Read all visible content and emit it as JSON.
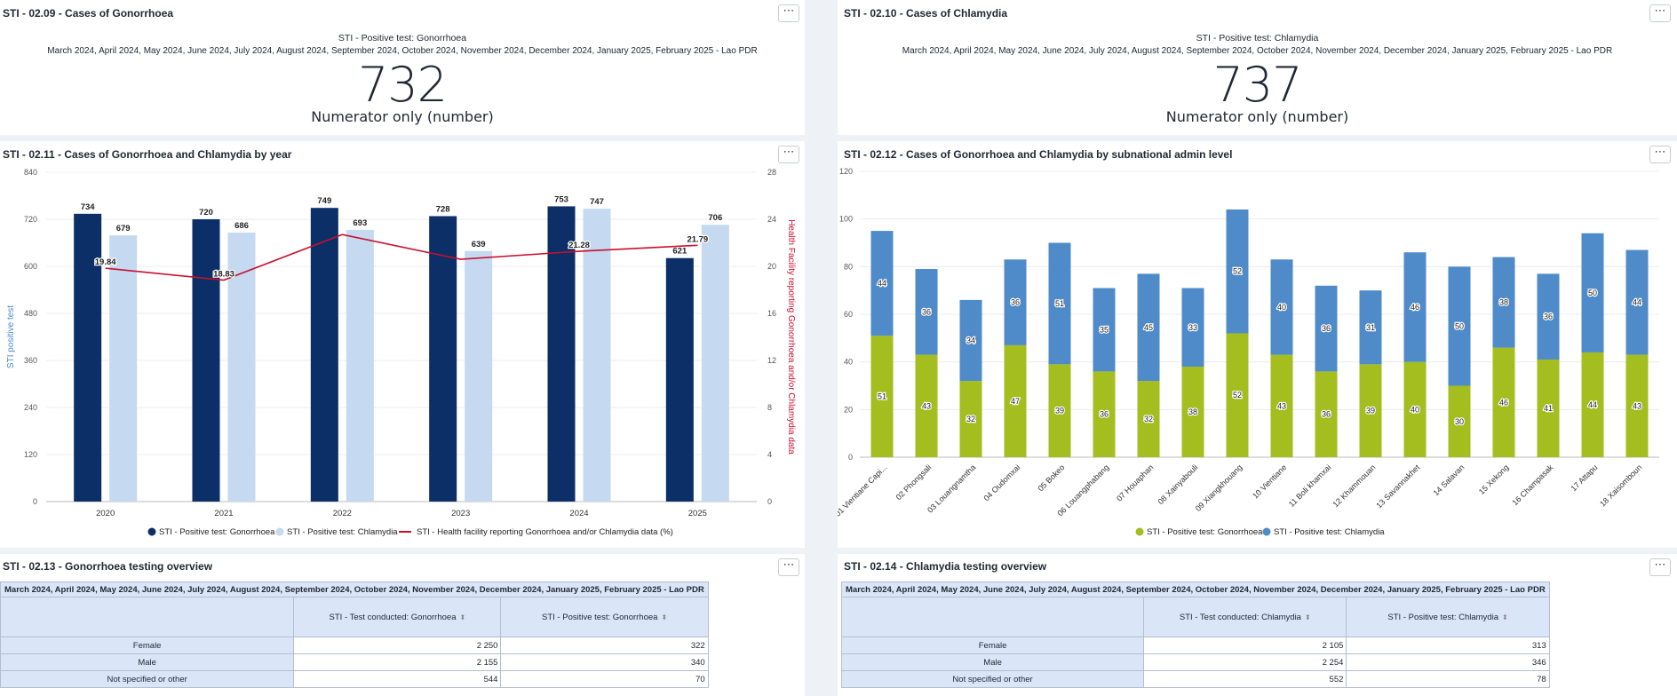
{
  "panels": {
    "sv_gonorrhoea": {
      "title": "STI - 02.09 - Cases of Gonorrhoea",
      "subtitle1": "STI - Positive test: Gonorrhoea",
      "subtitle2": "March 2024, April 2024, May 2024, June 2024, July 2024, August 2024, September 2024, October 2024, November 2024, December 2024, January 2025, February 2025 - Lao PDR",
      "value": "732",
      "legend": "Numerator only (number)"
    },
    "sv_chlamydia": {
      "title": "STI - 02.10 - Cases of Chlamydia",
      "subtitle1": "STI - Positive test: Chlamydia",
      "subtitle2": "March 2024, April 2024, May 2024, June 2024, July 2024, August 2024, September 2024, October 2024, November 2024, December 2024, January 2025, February 2025 - Lao PDR",
      "value": "737",
      "legend": "Numerator only (number)"
    },
    "year_chart": {
      "title": "STI - 02.11 - Cases of Gonorrhoea and Chlamydia by year"
    },
    "subnat_chart": {
      "title": "STI - 02.12 - Cases of Gonorrhoea and Chlamydia by subnational admin level"
    },
    "table_gon": {
      "title": "STI - 02.13 - Gonorrhoea testing overview",
      "header": "March 2024, April 2024, May 2024, June 2024, July 2024, August 2024, September 2024, October 2024, November 2024, December 2024, January 2025, February 2025 - Lao PDR",
      "columns": [
        "STI - Test conducted: Gonorrhoea",
        "STI - Positive test: Gonorrhoea"
      ],
      "rows": [
        {
          "label": "Female",
          "values": [
            "2 250",
            "322"
          ]
        },
        {
          "label": "Male",
          "values": [
            "2 155",
            "340"
          ]
        },
        {
          "label": "Not specified or other",
          "values": [
            "544",
            "70"
          ]
        }
      ]
    },
    "table_chl": {
      "title": "STI - 02.14 - Chlamydia testing overview",
      "header": "March 2024, April 2024, May 2024, June 2024, July 2024, August 2024, September 2024, October 2024, November 2024, December 2024, January 2025, February 2025 - Lao PDR",
      "columns": [
        "STI - Test conducted: Chlamydia",
        "STI - Positive test: Chlamydia"
      ],
      "rows": [
        {
          "label": "Female",
          "values": [
            "2 105",
            "313"
          ]
        },
        {
          "label": "Male",
          "values": [
            "2 254",
            "346"
          ]
        },
        {
          "label": "Not specified or other",
          "values": [
            "552",
            "78"
          ]
        }
      ]
    }
  },
  "more_icon": "⋯",
  "sort_icon": "⬍",
  "chart_data": [
    {
      "type": "bar",
      "categories": [
        "2020",
        "2021",
        "2022",
        "2023",
        "2024",
        "2025"
      ],
      "series": [
        {
          "name": "STI - Positive test: Gonorrhoea",
          "values": [
            734,
            720,
            749,
            728,
            753,
            621
          ],
          "color": "#0b2f66"
        },
        {
          "name": "STI - Positive test: Chlamydia",
          "values": [
            679,
            686,
            693,
            639,
            747,
            706
          ],
          "color": "#c5d9f0"
        },
        {
          "name": "STI - Health facility reporting Gonorrhoea and/or Chlamydia data (%)",
          "type": "line",
          "axis": "right",
          "values": [
            19.84,
            18.83,
            22.7,
            20.6,
            21.28,
            21.79
          ],
          "labels": [
            "19.84",
            "18.83",
            "",
            "",
            "21.28",
            "21.79"
          ],
          "color": "#c8102e"
        }
      ],
      "ylabel": "STI positive test",
      "y2label": "Health Facility reporting Gonorrhoea and/or Chlamydia data",
      "ylim": [
        0,
        840
      ],
      "yticks": [
        "0",
        "120",
        "240",
        "360",
        "480",
        "600",
        "720",
        "840"
      ],
      "y2lim": [
        0,
        28
      ],
      "y2ticks": [
        "0",
        "4",
        "8",
        "12",
        "16",
        "20",
        "24",
        "28"
      ],
      "legend": "bottom",
      "grid": true
    },
    {
      "type": "bar",
      "stacked": true,
      "categories": [
        "01 Vientiane Capi...",
        "02 Phongsali",
        "03 Louangnamtha",
        "04 Oudomxai",
        "05 Bokeo",
        "06 Louangphabang",
        "07 Houaphan",
        "08 Xainyabouli",
        "09 Xiangkhouang",
        "10 Vientiane",
        "11 Boli khamxai",
        "12 Khammouan",
        "13 Savannakhet",
        "14 Salavan",
        "15 Xekong",
        "16 Champasak",
        "17 Attapu",
        "18 Xaisomboun"
      ],
      "series": [
        {
          "name": "STI - Positive test: Gonorrhoea",
          "values": [
            51,
            43,
            32,
            47,
            39,
            36,
            32,
            38,
            52,
            43,
            36,
            39,
            40,
            30,
            46,
            41,
            44,
            43
          ],
          "color": "#a4bd1f"
        },
        {
          "name": "STI - Positive test: Chlamydia",
          "values": [
            44,
            36,
            34,
            36,
            51,
            35,
            45,
            33,
            52,
            40,
            36,
            31,
            46,
            50,
            38,
            36,
            50,
            44
          ],
          "color": "#4f8bc9"
        }
      ],
      "ylim": [
        0,
        120
      ],
      "yticks": [
        "0",
        "20",
        "40",
        "60",
        "80",
        "100",
        "120"
      ],
      "legend": "bottom",
      "grid": true
    }
  ]
}
